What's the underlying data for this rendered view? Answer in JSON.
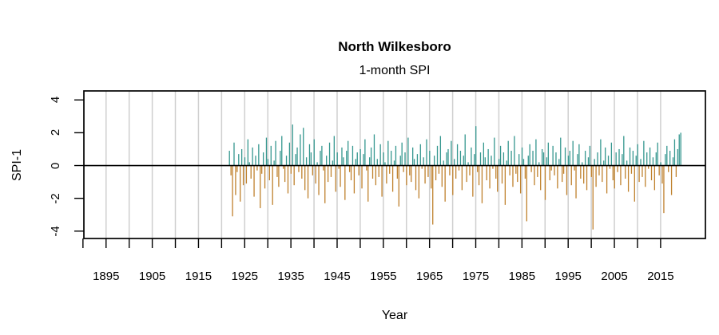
{
  "page": {
    "background": "#ffffff"
  },
  "chart_data": {
    "type": "bar",
    "title": "North Wilkesboro",
    "subtitle": "1-month SPI",
    "xlabel": "Year",
    "ylabel": "SPI-1",
    "xlim": [
      1890.2,
      2024.7
    ],
    "ylim": [
      -4.45,
      4.55
    ],
    "x_ticks": [
      1890,
      1895,
      1900,
      1905,
      1910,
      1915,
      1920,
      1925,
      1930,
      1935,
      1940,
      1945,
      1950,
      1955,
      1960,
      1965,
      1970,
      1975,
      1980,
      1985,
      1990,
      1995,
      2000,
      2005,
      2010,
      2015
    ],
    "x_tick_labels": [
      1895,
      1905,
      1915,
      1925,
      1935,
      1945,
      1955,
      1965,
      1975,
      1985,
      1995,
      2005,
      2015
    ],
    "y_ticks": [
      -4,
      -2,
      0,
      2,
      4
    ],
    "grid_years": [
      1895,
      1900,
      1905,
      1910,
      1915,
      1920,
      1925,
      1930,
      1935,
      1940,
      1945,
      1950,
      1955,
      1960,
      1965,
      1970,
      1975,
      1980,
      1985,
      1990,
      1995,
      2000,
      2005,
      2010,
      2015
    ],
    "zero_line": 0,
    "grid": "vertical-only",
    "legend": "none",
    "colors": {
      "positive": "#35978F",
      "negative": "#BF812D",
      "grid": "#CFCFCF",
      "axis": "#000000",
      "text": "#000000"
    },
    "series": {
      "name": "SPI-1",
      "start_year": 1921.7,
      "samples_per_year": 3,
      "values": [
        0.9,
        -0.6,
        -3.1,
        1.4,
        -1.8,
        -0.4,
        0.7,
        -2.2,
        1.0,
        -1.2,
        0.5,
        -1.1,
        1.6,
        0.2,
        -0.8,
        1.1,
        -1.9,
        0.6,
        -0.3,
        1.3,
        -2.6,
        -0.5,
        0.8,
        -1.4,
        1.7,
        0.4,
        -0.9,
        1.2,
        -2.4,
        0.3,
        1.5,
        -0.7,
        -1.3,
        0.9,
        1.8,
        -0.2,
        -1.0,
        0.6,
        -1.7,
        1.4,
        -0.5,
        2.5,
        -1.2,
        0.7,
        1.1,
        -0.4,
        1.9,
        -0.8,
        2.3,
        -1.5,
        0.5,
        -2.0,
        1.3,
        0.8,
        -0.6,
        1.6,
        -1.1,
        0.2,
        -1.8,
        0.9,
        1.2,
        -0.3,
        -2.3,
        0.6,
        -1.0,
        1.4,
        -0.7,
        0.3,
        1.8,
        -1.6,
        0.8,
        -0.2,
        -1.3,
        1.1,
        0.5,
        -2.1,
        0.9,
        1.5,
        -0.4,
        -0.9,
        1.2,
        -1.7,
        0.4,
        0.8,
        -0.6,
        1.0,
        -1.4,
        0.7,
        1.6,
        -0.3,
        -2.2,
        0.5,
        1.1,
        -0.8,
        1.9,
        -1.2,
        0.4,
        -0.7,
        1.3,
        -1.9,
        0.8,
        0.2,
        -1.1,
        1.5,
        -0.5,
        0.9,
        -1.6,
        0.3,
        1.2,
        -0.8,
        -2.5,
        0.6,
        1.4,
        -0.4,
        0.8,
        -1.2,
        1.7,
        -0.6,
        -1.0,
        1.1,
        0.4,
        -1.5,
        0.7,
        -2.0,
        1.3,
        -0.2,
        0.5,
        -1.1,
        1.6,
        -0.7,
        0.9,
        -1.4,
        -3.6,
        0.6,
        -0.9,
        1.2,
        -0.5,
        1.8,
        -1.3,
        0.3,
        -2.2,
        0.8,
        1.0,
        -0.6,
        1.5,
        -1.8,
        0.4,
        -0.8,
        1.3,
        -0.3,
        0.9,
        -1.5,
        0.6,
        1.9,
        -1.0,
        0.2,
        -0.6,
        1.1,
        -1.9,
        0.7,
        2.4,
        -0.4,
        -1.2,
        0.8,
        -2.3,
        1.4,
        0.5,
        -0.9,
        1.0,
        -1.4,
        0.6,
        -0.2,
        1.7,
        -0.8,
        -1.6,
        0.4,
        1.2,
        -1.1,
        0.8,
        -2.4,
        0.3,
        1.5,
        -0.6,
        0.9,
        -1.3,
        1.8,
        -0.5,
        -1.0,
        0.7,
        -1.7,
        1.1,
        0.4,
        -0.8,
        -3.4,
        0.6,
        1.3,
        -0.4,
        0.9,
        -1.2,
        1.6,
        -0.7,
        0.2,
        -1.5,
        1.0,
        0.8,
        -2.1,
        0.5,
        1.4,
        -0.9,
        -0.3,
        1.2,
        -0.6,
        0.8,
        -1.4,
        0.4,
        1.7,
        -1.0,
        -0.5,
        1.1,
        -1.8,
        0.6,
        0.9,
        -1.2,
        1.5,
        -0.3,
        -2.0,
        0.7,
        1.3,
        -0.8,
        0.2,
        -1.1,
        0.9,
        -1.5,
        0.5,
        1.2,
        -0.7,
        -3.9,
        0.4,
        -1.3,
        0.8,
        -0.6,
        1.6,
        -1.0,
        0.3,
        1.1,
        -1.7,
        0.6,
        -0.2,
        1.4,
        -0.9,
        -1.4,
        0.8,
        -0.4,
        1.0,
        -1.2,
        0.7,
        1.8,
        -0.8,
        0.3,
        -1.6,
        1.1,
        -0.5,
        0.9,
        -2.2,
        0.6,
        1.3,
        -1.0,
        0.4,
        -0.7,
        1.5,
        -1.3,
        0.8,
        -0.2,
        1.1,
        -0.9,
        0.5,
        -1.5,
        0.8,
        1.4,
        -0.6,
        0.2,
        -1.1,
        -2.9,
        0.7,
        1.2,
        -0.4,
        0.9,
        -1.8,
        0.5,
        1.6,
        -0.7,
        1.0,
        1.9,
        2.0
      ]
    }
  }
}
